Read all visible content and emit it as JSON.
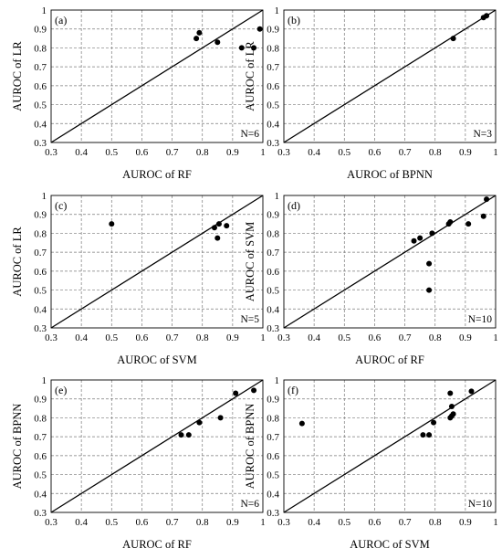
{
  "chart_data": [
    {
      "type": "scatter",
      "panel_label": "(a)",
      "xlabel": "AUROC of  RF",
      "ylabel": "AUROC of  LR",
      "xlim": [
        0.3,
        1.0
      ],
      "ylim": [
        0.3,
        1.0
      ],
      "xticks": [
        "0.3",
        "0.4",
        "0.5",
        "0.6",
        "0.7",
        "0.8",
        "0.9",
        "1"
      ],
      "yticks": [
        "0.3",
        "0.4",
        "0.5",
        "0.6",
        "0.7",
        "0.8",
        "0.9",
        "1"
      ],
      "grid": true,
      "reference_line": "y = x",
      "n_label": "N=6",
      "points": [
        {
          "x": 0.78,
          "y": 0.85
        },
        {
          "x": 0.79,
          "y": 0.88
        },
        {
          "x": 0.85,
          "y": 0.83
        },
        {
          "x": 0.93,
          "y": 0.8
        },
        {
          "x": 0.97,
          "y": 0.8
        },
        {
          "x": 0.99,
          "y": 0.9
        }
      ]
    },
    {
      "type": "scatter",
      "panel_label": "(b)",
      "xlabel": "AUROC of  BPNN",
      "ylabel": "AUROC of  LR",
      "xlim": [
        0.3,
        1.0
      ],
      "ylim": [
        0.3,
        1.0
      ],
      "xticks": [
        "0.3",
        "0.4",
        "0.5",
        "0.6",
        "0.7",
        "0.8",
        "0.9",
        "1"
      ],
      "yticks": [
        "0.3",
        "0.4",
        "0.5",
        "0.6",
        "0.7",
        "0.8",
        "0.9",
        "1"
      ],
      "grid": true,
      "reference_line": "y = x",
      "n_label": "N=3",
      "points": [
        {
          "x": 0.86,
          "y": 0.85
        },
        {
          "x": 0.96,
          "y": 0.96
        },
        {
          "x": 0.97,
          "y": 0.97
        }
      ]
    },
    {
      "type": "scatter",
      "panel_label": "(c)",
      "xlabel": "AUROC of  SVM",
      "ylabel": "AUROC of  LR",
      "xlim": [
        0.3,
        1.0
      ],
      "ylim": [
        0.3,
        1.0
      ],
      "xticks": [
        "0.3",
        "0.4",
        "0.5",
        "0.6",
        "0.7",
        "0.8",
        "0.9",
        "1"
      ],
      "yticks": [
        "0.3",
        "0.4",
        "0.5",
        "0.6",
        "0.7",
        "0.8",
        "0.9",
        "1"
      ],
      "grid": true,
      "reference_line": "y = x",
      "n_label": "N=5",
      "points": [
        {
          "x": 0.5,
          "y": 0.85
        },
        {
          "x": 0.84,
          "y": 0.83
        },
        {
          "x": 0.855,
          "y": 0.85
        },
        {
          "x": 0.85,
          "y": 0.775
        },
        {
          "x": 0.88,
          "y": 0.84
        }
      ]
    },
    {
      "type": "scatter",
      "panel_label": "(d)",
      "xlabel": "AUROC of  RF",
      "ylabel": "AUROC of  SVM",
      "xlim": [
        0.3,
        1.0
      ],
      "ylim": [
        0.3,
        1.0
      ],
      "xticks": [
        "0.3",
        "0.4",
        "0.5",
        "0.6",
        "0.7",
        "0.8",
        "0.9",
        "1"
      ],
      "yticks": [
        "0.3",
        "0.4",
        "0.5",
        "0.6",
        "0.7",
        "0.8",
        "0.9",
        "1"
      ],
      "grid": true,
      "reference_line": "y = x",
      "n_label": "N=10",
      "points": [
        {
          "x": 0.73,
          "y": 0.76
        },
        {
          "x": 0.75,
          "y": 0.775
        },
        {
          "x": 0.79,
          "y": 0.8
        },
        {
          "x": 0.78,
          "y": 0.64
        },
        {
          "x": 0.78,
          "y": 0.5
        },
        {
          "x": 0.845,
          "y": 0.85
        },
        {
          "x": 0.85,
          "y": 0.86
        },
        {
          "x": 0.91,
          "y": 0.85
        },
        {
          "x": 0.96,
          "y": 0.89
        },
        {
          "x": 0.97,
          "y": 0.98
        }
      ]
    },
    {
      "type": "scatter",
      "panel_label": "(e)",
      "xlabel": "AUROC of  RF",
      "ylabel": "AUROC of BPNN",
      "xlim": [
        0.3,
        1.0
      ],
      "ylim": [
        0.3,
        1.0
      ],
      "xticks": [
        "0.3",
        "0.4",
        "0.5",
        "0.6",
        "0.7",
        "0.8",
        "0.9",
        "1"
      ],
      "yticks": [
        "0.3",
        "0.4",
        "0.5",
        "0.6",
        "0.7",
        "0.8",
        "0.9",
        "1"
      ],
      "grid": true,
      "reference_line": "y = x",
      "n_label": "N=6",
      "points": [
        {
          "x": 0.73,
          "y": 0.71
        },
        {
          "x": 0.755,
          "y": 0.71
        },
        {
          "x": 0.79,
          "y": 0.775
        },
        {
          "x": 0.86,
          "y": 0.8
        },
        {
          "x": 0.91,
          "y": 0.93
        },
        {
          "x": 0.97,
          "y": 0.945
        }
      ]
    },
    {
      "type": "scatter",
      "panel_label": "(f)",
      "xlabel": "AUROC of  SVM",
      "ylabel": "AUROC of BPNN",
      "xlim": [
        0.3,
        1.0
      ],
      "ylim": [
        0.3,
        1.0
      ],
      "xticks": [
        "0.3",
        "0.4",
        "0.5",
        "0.6",
        "0.7",
        "0.8",
        "0.9",
        "1"
      ],
      "yticks": [
        "0.3",
        "0.4",
        "0.5",
        "0.6",
        "0.7",
        "0.8",
        "0.9",
        "1"
      ],
      "grid": true,
      "reference_line": "y = x",
      "n_label": "N=10",
      "points": [
        {
          "x": 0.36,
          "y": 0.77
        },
        {
          "x": 0.76,
          "y": 0.71
        },
        {
          "x": 0.78,
          "y": 0.71
        },
        {
          "x": 0.795,
          "y": 0.775
        },
        {
          "x": 0.85,
          "y": 0.8
        },
        {
          "x": 0.855,
          "y": 0.81
        },
        {
          "x": 0.855,
          "y": 0.86
        },
        {
          "x": 0.85,
          "y": 0.93
        },
        {
          "x": 0.92,
          "y": 0.94
        },
        {
          "x": 0.86,
          "y": 0.82
        }
      ]
    }
  ]
}
